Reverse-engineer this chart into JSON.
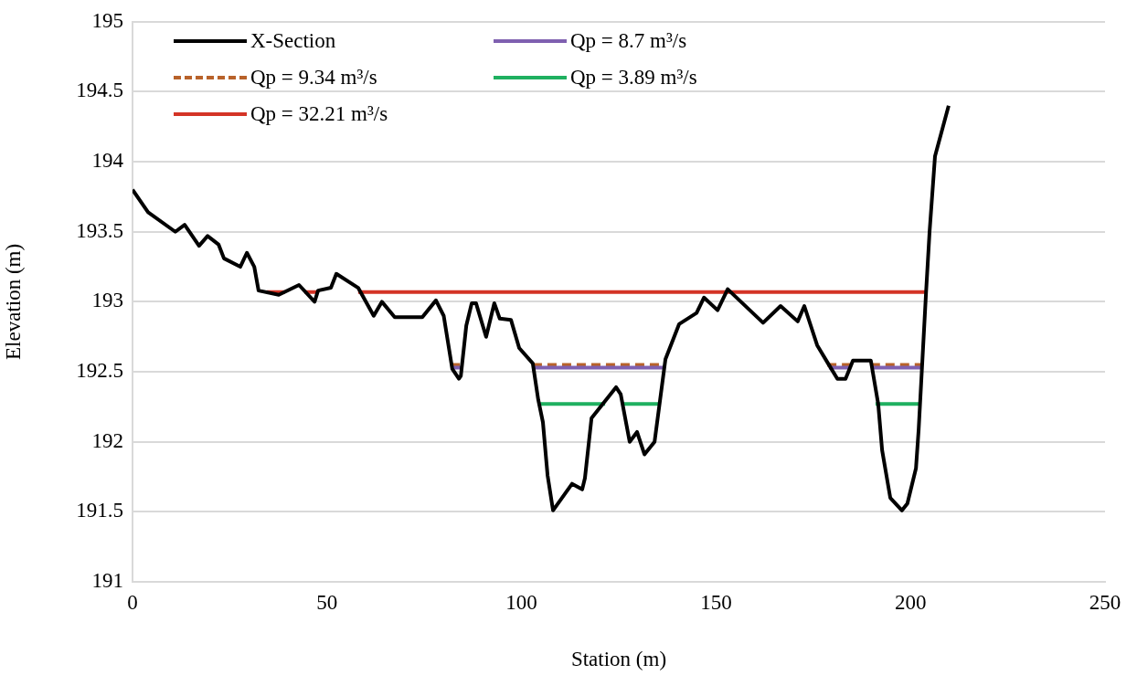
{
  "chart_data": {
    "type": "line",
    "xlabel": "Station (m)",
    "ylabel": "Elevation (m)",
    "xlim": [
      0,
      250
    ],
    "xticks": [
      0,
      50,
      100,
      150,
      200,
      250
    ],
    "ylim": [
      191,
      195
    ],
    "yticks": [
      191,
      191.5,
      192,
      192.5,
      193,
      193.5,
      194,
      194.5,
      195
    ],
    "grid": "y",
    "legend": "top left",
    "marker": "none",
    "series": [
      {
        "name": "X-Section",
        "color": "#000000",
        "line_style": "solid",
        "x": [
          0,
          4,
          11,
          13.4,
          17.1,
          19.3,
          22.1,
          23.5,
          27.7,
          29.4,
          31.3,
          32.4,
          37.6,
          42.8,
          46.8,
          47.7,
          51,
          52.4,
          58,
          62,
          64.1,
          67.4,
          74.5,
          78,
          80,
          82.2,
          83.9,
          84.4,
          85.8,
          87.2,
          88.3,
          90.9,
          93,
          94.4,
          97.3,
          99.4,
          102.9,
          104.3,
          105.5,
          106.7,
          108.1,
          113,
          115.6,
          116.3,
          118,
          124.3,
          125.5,
          127.8,
          129.7,
          131.6,
          134.2,
          137,
          140.5,
          145,
          146.9,
          150.4,
          153,
          162.1,
          166.6,
          171,
          172.7,
          176,
          178.8,
          181.2,
          183.3,
          185.2,
          189.8,
          191.7,
          192.7,
          194.8,
          197.8,
          199.2,
          201.4,
          202.1,
          204,
          204.9,
          206.3,
          209.8
        ],
        "values": [
          193.8,
          193.64,
          193.5,
          193.55,
          193.4,
          193.47,
          193.41,
          193.31,
          193.25,
          193.35,
          193.25,
          193.08,
          193.05,
          193.12,
          193.0,
          193.08,
          193.1,
          193.2,
          193.1,
          192.9,
          193.0,
          192.89,
          192.89,
          193.01,
          192.9,
          192.52,
          192.45,
          192.47,
          192.83,
          192.99,
          192.99,
          192.75,
          192.99,
          192.88,
          192.87,
          192.67,
          192.56,
          192.3,
          192.14,
          191.76,
          191.51,
          191.7,
          191.66,
          191.74,
          192.17,
          192.39,
          192.34,
          192.0,
          192.07,
          191.91,
          192.0,
          192.59,
          192.84,
          192.92,
          193.03,
          192.94,
          193.09,
          192.85,
          192.97,
          192.86,
          192.97,
          192.69,
          192.56,
          192.45,
          192.45,
          192.58,
          192.58,
          192.27,
          191.94,
          191.6,
          191.51,
          191.56,
          191.81,
          192.09,
          193.07,
          193.5,
          194.04,
          194.4
        ]
      },
      {
        "name": "Qp = 8.7 m³/s",
        "color": "#7f60b0",
        "line_style": "solid",
        "x": [
          82.3,
          84.4,
          93,
          103.2,
          137,
          158,
          179,
          184.6,
          187,
          190,
          203
        ],
        "values": [
          192.53,
          192.53,
          null,
          192.53,
          192.53,
          null,
          192.53,
          192.53,
          null,
          192.53,
          192.53
        ]
      },
      {
        "name": "Qp = 9.34 m³/s",
        "color": "#b8622a",
        "line_style": "dashed",
        "x": [
          81.8,
          84.6,
          93,
          102.9,
          137.2,
          158,
          178.6,
          184.9,
          187,
          189.8,
          203
        ],
        "values": [
          192.55,
          192.55,
          null,
          192.55,
          192.55,
          null,
          192.55,
          192.55,
          null,
          192.55,
          192.55
        ]
      },
      {
        "name": "Qp = 3.89 m³/s",
        "color": "#1fb060",
        "line_style": "solid",
        "x": [
          104.6,
          121.5,
          123,
          125.7,
          135.8,
          160,
          191,
          202.5
        ],
        "values": [
          192.27,
          192.27,
          null,
          192.27,
          192.27,
          null,
          192.27,
          192.27
        ]
      },
      {
        "name": "Qp = 32.21 m³/s",
        "color": "#d43426",
        "line_style": "solid",
        "x": [
          34.5,
          39.2,
          41,
          44.2,
          47.9,
          53,
          58,
          204
        ],
        "values": [
          193.07,
          193.07,
          null,
          193.07,
          193.07,
          null,
          193.07,
          193.07
        ]
      }
    ]
  }
}
